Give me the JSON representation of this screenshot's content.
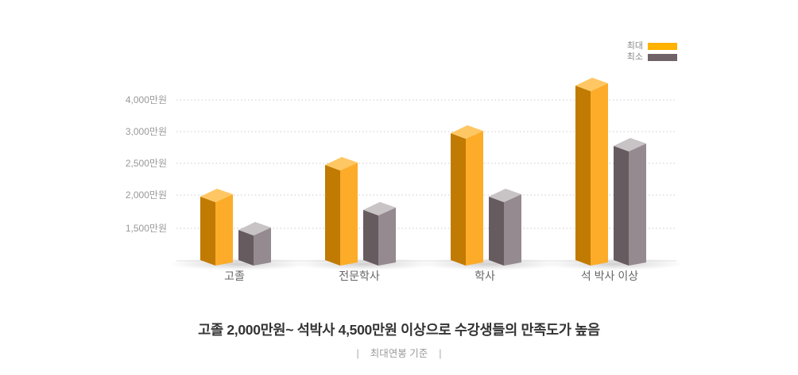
{
  "page": {
    "background": "#ffffff"
  },
  "legend": {
    "items": [
      {
        "label": "최대",
        "color": "#FFB200"
      },
      {
        "label": "최소",
        "color": "#6F6368"
      }
    ]
  },
  "chart_data": {
    "type": "bar",
    "title": "고졸 2,000만원~ 석박사 4,500만원 이상으로 수강생들의 만족도가 높음",
    "categories": [
      "고졸",
      "전문학사",
      "학사",
      "석 박사 이상"
    ],
    "series": [
      {
        "name": "최대",
        "key": "max",
        "values": [
          2000,
          2500,
          3000,
          4500
        ]
      },
      {
        "name": "최소",
        "key": "min",
        "values": [
          1500,
          1800,
          2000,
          2800
        ]
      }
    ],
    "unit": "만원",
    "y_ticks": [
      {
        "value": 4000,
        "label": "4,000만원"
      },
      {
        "value": 3000,
        "label": "3,000만원"
      },
      {
        "value": 2500,
        "label": "2,500만원"
      },
      {
        "value": 2000,
        "label": "2,000만원"
      },
      {
        "value": 1500,
        "label": "1,500만원"
      }
    ],
    "baseline_value": 1000,
    "axis_note": "non-linear scale: 4000-3000 interval equals 3000-2500 interval on screen",
    "grid": "horizontal dotted",
    "legend_position": "top-right",
    "bar_style": "3d-column"
  },
  "footer": {
    "caption": "최대연봉 기준",
    "caption_divider": "|"
  },
  "colors": {
    "max_front": "#FCAC29",
    "max_side": "#C17A02",
    "max_top": "#FFC763",
    "min_front": "#948A90",
    "min_side": "#665B5F",
    "min_top": "#C8C3C5",
    "grid": "#c9c9c9",
    "baseline": "#e0e0e0",
    "tick_label": "#999999",
    "category_label": "#666666",
    "headline": "#333333",
    "caption": "#9b9b9b",
    "legend_label": "#8a8a8a"
  }
}
